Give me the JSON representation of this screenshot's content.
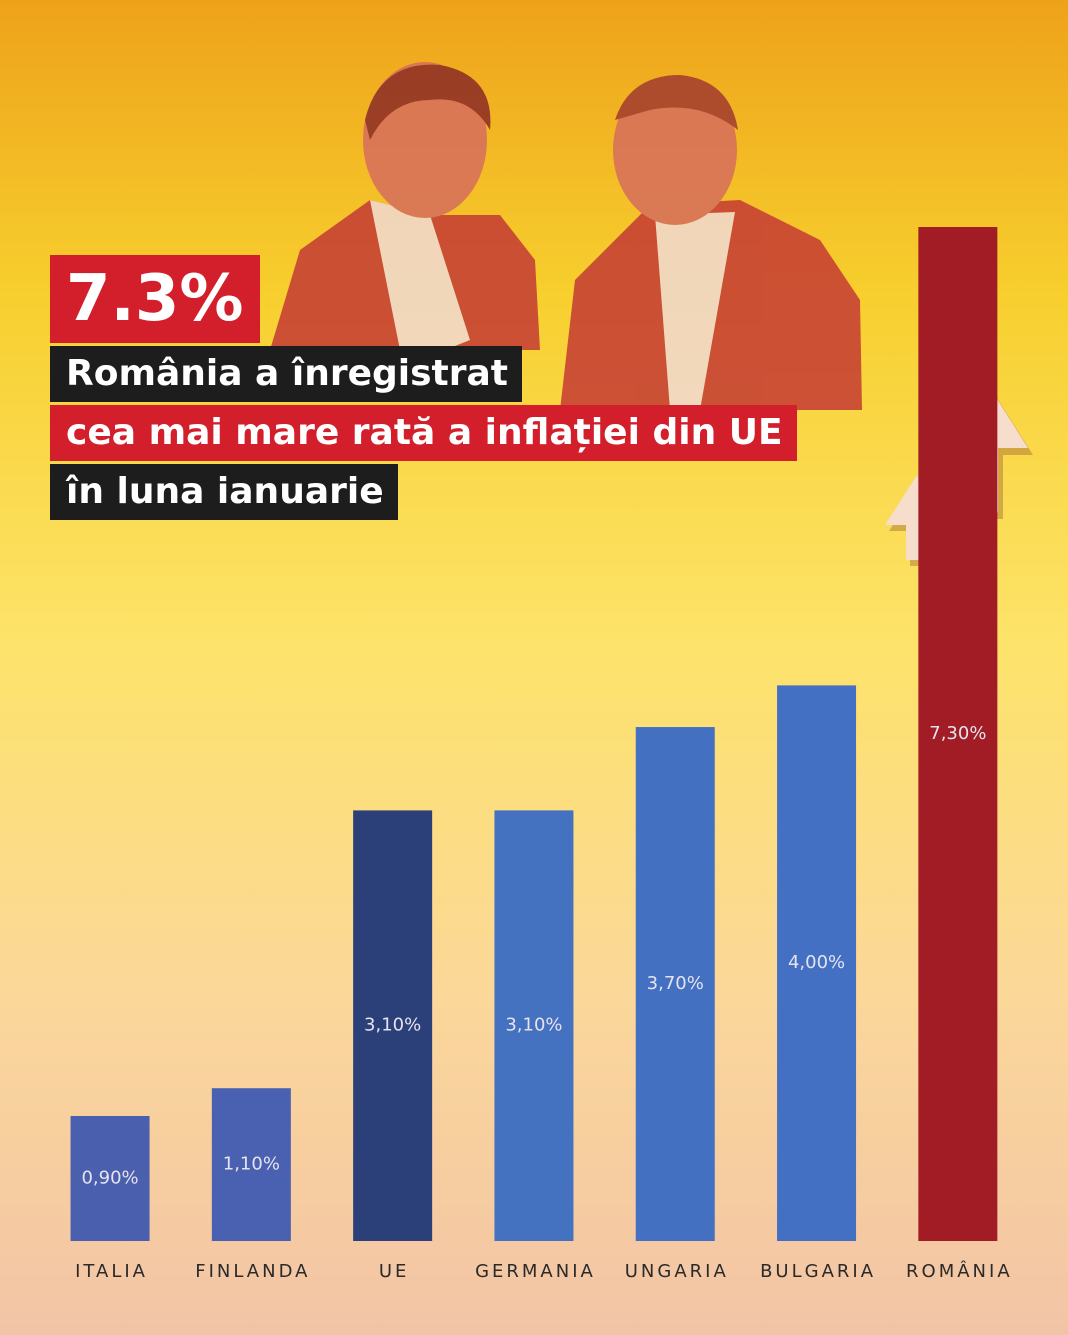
{
  "chart_data": {
    "type": "bar",
    "headline": "7.3%",
    "title_lines": [
      "România a înregistrat",
      "cea mai mare rată a inflației din UE",
      "în luna ianuarie"
    ],
    "categories": [
      "ITALIA",
      "FINLANDA",
      "UE",
      "GERMANIA",
      "UNGARIA",
      "BULGARIA",
      "ROMÂNIA"
    ],
    "values": [
      0.9,
      1.1,
      3.1,
      3.1,
      3.7,
      4.0,
      7.3
    ],
    "value_labels": [
      "0,90%",
      "1,10%",
      "3,10%",
      "3,10%",
      "3,70%",
      "4,00%",
      "7,30%"
    ],
    "colors": [
      "#4a5fae",
      "#4a60b0",
      "#2b3f78",
      "#4471c0",
      "#4470c2",
      "#4470c4",
      "#a21c25"
    ]
  }
}
